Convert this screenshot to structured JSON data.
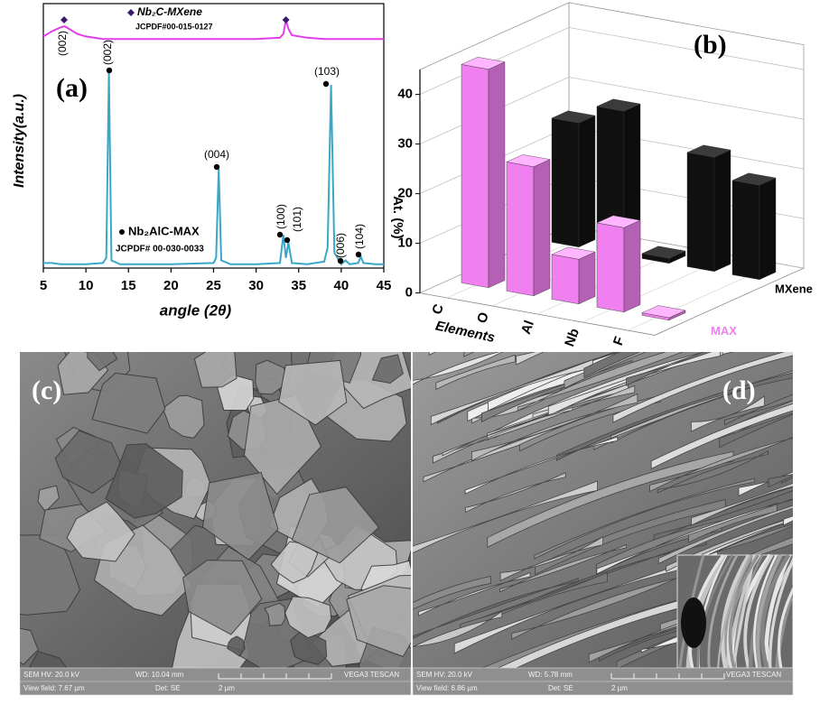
{
  "chart_data": [
    {
      "type": "line",
      "panel_label": "(a)",
      "x_label": "angle (2θ)",
      "y_label": "Intensity(a.u.)",
      "xlim": [
        5,
        45
      ],
      "xticks": [
        5,
        10,
        15,
        20,
        25,
        30,
        35,
        40,
        45
      ],
      "ylim": [
        0,
        100
      ],
      "x": [
        5,
        6,
        7,
        7.5,
        8,
        9,
        10,
        12,
        12.4,
        12.7,
        13,
        14,
        16,
        20,
        25,
        25.3,
        25.6,
        25.9,
        27,
        30,
        32.8,
        33.2,
        33.5,
        33.8,
        34.2,
        36,
        38,
        38.4,
        38.8,
        39.2,
        40,
        40.5,
        41,
        42,
        42.3,
        42.6,
        44,
        45
      ],
      "series": [
        {
          "name": "Nb₂AlC-MAX",
          "reference": "JCPDF# 00-030-0033",
          "color": "#3aa6c8",
          "values": [
            2,
            2,
            1.5,
            1.5,
            1.5,
            1.5,
            1.5,
            2,
            4,
            77,
            3,
            1.5,
            1.5,
            1.5,
            2,
            4,
            39,
            3,
            1.5,
            1.5,
            2,
            13,
            4,
            10,
            2,
            1.5,
            2.5,
            8,
            72,
            6,
            1.5,
            3,
            1.5,
            2,
            4.5,
            2,
            1.5,
            1.5
          ]
        },
        {
          "name": "Nb₂C-MXene",
          "reference": "JCPDF#00-015-0127",
          "color": "#e03ee6",
          "values": [
            91,
            93,
            94.5,
            95,
            94,
            92,
            91,
            90,
            90,
            90,
            90,
            90,
            90,
            90,
            90,
            90,
            90,
            90,
            90,
            90,
            90.5,
            92,
            97.5,
            94,
            91.5,
            90.5,
            90,
            90,
            90,
            90,
            90,
            90,
            90,
            90,
            90,
            90,
            90,
            90
          ]
        }
      ],
      "annotations": [
        "(002)",
        "(002)",
        "(004)",
        "(100)",
        "(101)",
        "(103)",
        "(006)",
        "(104)"
      ]
    },
    {
      "type": "bar3d",
      "panel_label": "(b)",
      "x_label": "Elements",
      "y_label": "At. (%)",
      "categories": [
        "C",
        "O",
        "Al",
        "Nb",
        "F"
      ],
      "ylim": [
        0,
        45
      ],
      "yticks": [
        0,
        10,
        20,
        30,
        40
      ],
      "series": [
        {
          "name": "MAX",
          "color": "#f080f0",
          "values": [
            44,
            26,
            9,
            17,
            0.5
          ]
        },
        {
          "name": "MXene",
          "color": "#111111",
          "values": [
            25,
            29,
            1,
            23,
            19
          ]
        }
      ]
    }
  ],
  "images": [
    {
      "label": "(c)",
      "info": [
        "SEM HV: 20.0 kV",
        "WD: 10.04 mm",
        "VEGA3 TESCAN",
        "View field: 7.67 µm",
        "Det: SE",
        "2 µm"
      ]
    },
    {
      "label": "(d)",
      "info": [
        "SEM HV: 20.0 kV",
        "WD: 5.78 mm",
        "VEGA3 TESCAN",
        "View field: 6.86 µm",
        "Det: SE",
        "2 µm"
      ]
    }
  ]
}
